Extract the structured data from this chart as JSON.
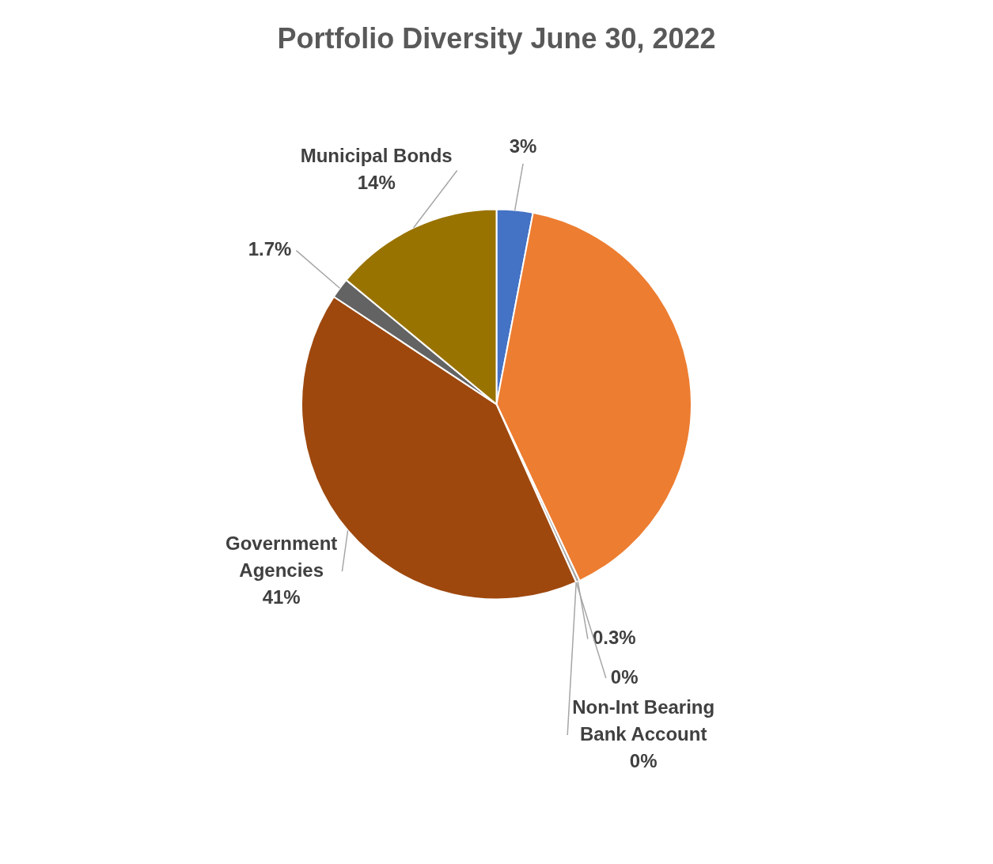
{
  "chart_data": {
    "type": "pie",
    "title": "Portfolio Diversity June 30, 2022",
    "categories": [
      null,
      null,
      null,
      null,
      "Non-Int Bearing Bank Account",
      "Government Agencies",
      null,
      "Municipal Bonds"
    ],
    "values": [
      3,
      40,
      0.3,
      0,
      0,
      41,
      1.7,
      14
    ],
    "colors": [
      "#4472c4",
      "#ed7d31",
      "#a5a5a5",
      "#ffc000",
      "#5b9bd5",
      "#9e480e",
      "#636363",
      "#997300"
    ],
    "value_labels": [
      "3%",
      null,
      "0.3%",
      "0%",
      "0%",
      "41%",
      "1.7%",
      "14%"
    ],
    "legend": false
  }
}
